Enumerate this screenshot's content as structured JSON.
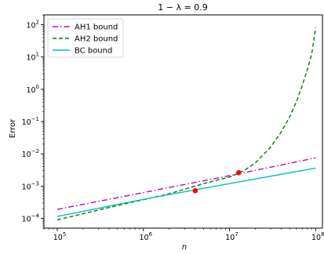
{
  "chart_data": {
    "type": "line",
    "title": "1 − λ = 0.9",
    "xlabel": "n",
    "ylabel": "Error",
    "xscale": "log",
    "yscale": "log",
    "xlim": [
      70000,
      120000000
    ],
    "ylim": [
      5e-05,
      200
    ],
    "xticks": [
      100000,
      1000000,
      10000000,
      100000000
    ],
    "xtick_labels": [
      {
        "base": "10",
        "exp": "5"
      },
      {
        "base": "10",
        "exp": "6"
      },
      {
        "base": "10",
        "exp": "7"
      },
      {
        "base": "10",
        "exp": "8"
      }
    ],
    "yticks": [
      0.0001,
      0.001,
      0.01,
      0.1,
      1,
      10,
      100
    ],
    "ytick_labels": [
      {
        "base": "10",
        "exp": "−4"
      },
      {
        "base": "10",
        "exp": "−3"
      },
      {
        "base": "10",
        "exp": "−2"
      },
      {
        "base": "10",
        "exp": "−1"
      },
      {
        "base": "10",
        "exp": "0"
      },
      {
        "base": "10",
        "exp": "1"
      },
      {
        "base": "10",
        "exp": "2"
      }
    ],
    "grid": false,
    "legend_position": "top-left",
    "series": [
      {
        "name": "AH1 bound",
        "color": "#bf00bf",
        "style": "dashdot",
        "x": [
          100000,
          1000000,
          10000000,
          100000000
        ],
        "y": [
          0.00019,
          0.00063,
          0.0021,
          0.0075
        ]
      },
      {
        "name": "AH2 bound",
        "color": "#008000",
        "style": "dashed",
        "x": [
          100000,
          200000,
          500000,
          1000000,
          2000000,
          5000000,
          10000000,
          15000000,
          20000000,
          30000000,
          40000000,
          50000000,
          60000000,
          70000000,
          80000000,
          90000000,
          100000000
        ],
        "y": [
          9e-05,
          0.00014,
          0.00025,
          0.00038,
          0.00058,
          0.0012,
          0.0019,
          0.0031,
          0.0053,
          0.016,
          0.048,
          0.14,
          0.42,
          1.3,
          4.0,
          12,
          80
        ]
      },
      {
        "name": "BC bound",
        "color": "#00bfbf",
        "style": "solid",
        "x": [
          100000,
          1000000,
          10000000,
          100000000
        ],
        "y": [
          0.000115,
          0.00039,
          0.0012,
          0.0036
        ]
      }
    ],
    "markers": [
      {
        "x": 4000000,
        "y": 0.00072,
        "color": "#ff0000"
      },
      {
        "x": 12800000,
        "y": 0.0026,
        "color": "#ff0000"
      }
    ]
  }
}
